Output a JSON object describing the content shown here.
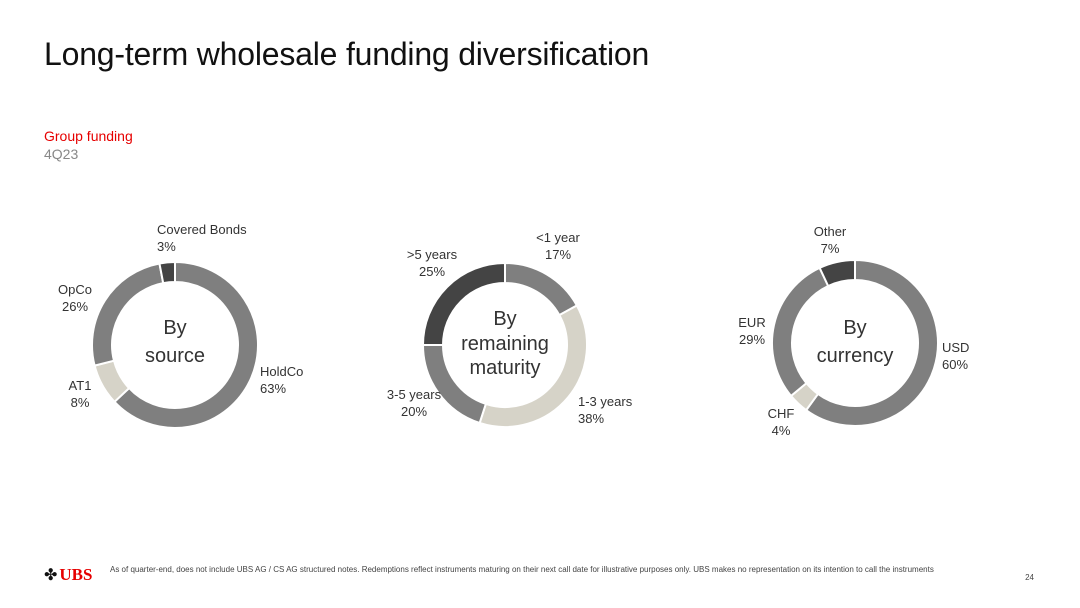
{
  "title": "Long-term wholesale funding diversification",
  "subtitle": "Group funding",
  "period": "4Q23",
  "colors": {
    "dark": "#444444",
    "mid": "#7f7f7f",
    "light": "#d6d3c8",
    "accent": "#e60000"
  },
  "chart_data": [
    {
      "type": "pie",
      "center_label": [
        "By",
        "source"
      ],
      "slices": [
        {
          "label": "HoldCo",
          "value": 63,
          "text": "63%",
          "color": "#7f7f7f"
        },
        {
          "label": "AT1",
          "value": 8,
          "text": "8%",
          "color": "#d6d3c8"
        },
        {
          "label": "OpCo",
          "value": 26,
          "text": "26%",
          "color": "#7f7f7f"
        },
        {
          "label": "Covered Bonds",
          "value": 3,
          "text": "3%",
          "color": "#444444"
        }
      ]
    },
    {
      "type": "pie",
      "center_label": [
        "By",
        "remaining",
        "maturity"
      ],
      "slices": [
        {
          "label": "<1 year",
          "value": 17,
          "text": "17%",
          "color": "#7f7f7f"
        },
        {
          "label": "1-3 years",
          "value": 38,
          "text": "38%",
          "color": "#d6d3c8"
        },
        {
          "label": "3-5 years",
          "value": 20,
          "text": "20%",
          "color": "#7f7f7f"
        },
        {
          "label": ">5 years",
          "value": 25,
          "text": "25%",
          "color": "#444444"
        }
      ]
    },
    {
      "type": "pie",
      "center_label": [
        "By",
        "currency"
      ],
      "slices": [
        {
          "label": "USD",
          "value": 60,
          "text": "60%",
          "color": "#7f7f7f"
        },
        {
          "label": "CHF",
          "value": 4,
          "text": "4%",
          "color": "#d6d3c8"
        },
        {
          "label": "EUR",
          "value": 29,
          "text": "29%",
          "color": "#7f7f7f"
        },
        {
          "label": "Other",
          "value": 7,
          "text": "7%",
          "color": "#444444"
        }
      ]
    }
  ],
  "footer": {
    "logo_text": "UBS",
    "logo_icon": "ubs-keys-icon",
    "note": "As of quarter-end, does not include UBS AG / CS AG structured notes. Redemptions reflect instruments maturing on their next call date for illustrative purposes only. UBS makes no representation on its intention to call the instruments",
    "page": "24"
  }
}
